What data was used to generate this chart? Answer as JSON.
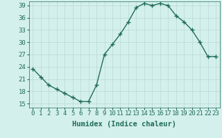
{
  "x": [
    0,
    1,
    2,
    3,
    4,
    5,
    6,
    7,
    8,
    9,
    10,
    11,
    12,
    13,
    14,
    15,
    16,
    17,
    18,
    19,
    20,
    21,
    22,
    23
  ],
  "y": [
    23.5,
    21.5,
    19.5,
    18.5,
    17.5,
    16.5,
    15.5,
    15.5,
    19.5,
    27,
    29.5,
    32,
    35,
    38.5,
    39.5,
    39,
    39.5,
    39,
    36.5,
    35,
    33,
    30,
    26.5,
    26.5
  ],
  "line_color": "#1f6b5a",
  "marker": "+",
  "marker_size": 4,
  "bg_color": "#d4f0ec",
  "grid_color": "#b8d8d4",
  "xlabel": "Humidex (Indice chaleur)",
  "xlim": [
    -0.5,
    23.5
  ],
  "ylim": [
    14,
    40
  ],
  "yticks": [
    15,
    18,
    21,
    24,
    27,
    30,
    33,
    36,
    39
  ],
  "xticks": [
    0,
    1,
    2,
    3,
    4,
    5,
    6,
    7,
    8,
    9,
    10,
    11,
    12,
    13,
    14,
    15,
    16,
    17,
    18,
    19,
    20,
    21,
    22,
    23
  ],
  "xlabel_fontsize": 7.5,
  "tick_fontsize": 6.5,
  "line_width": 1.0
}
